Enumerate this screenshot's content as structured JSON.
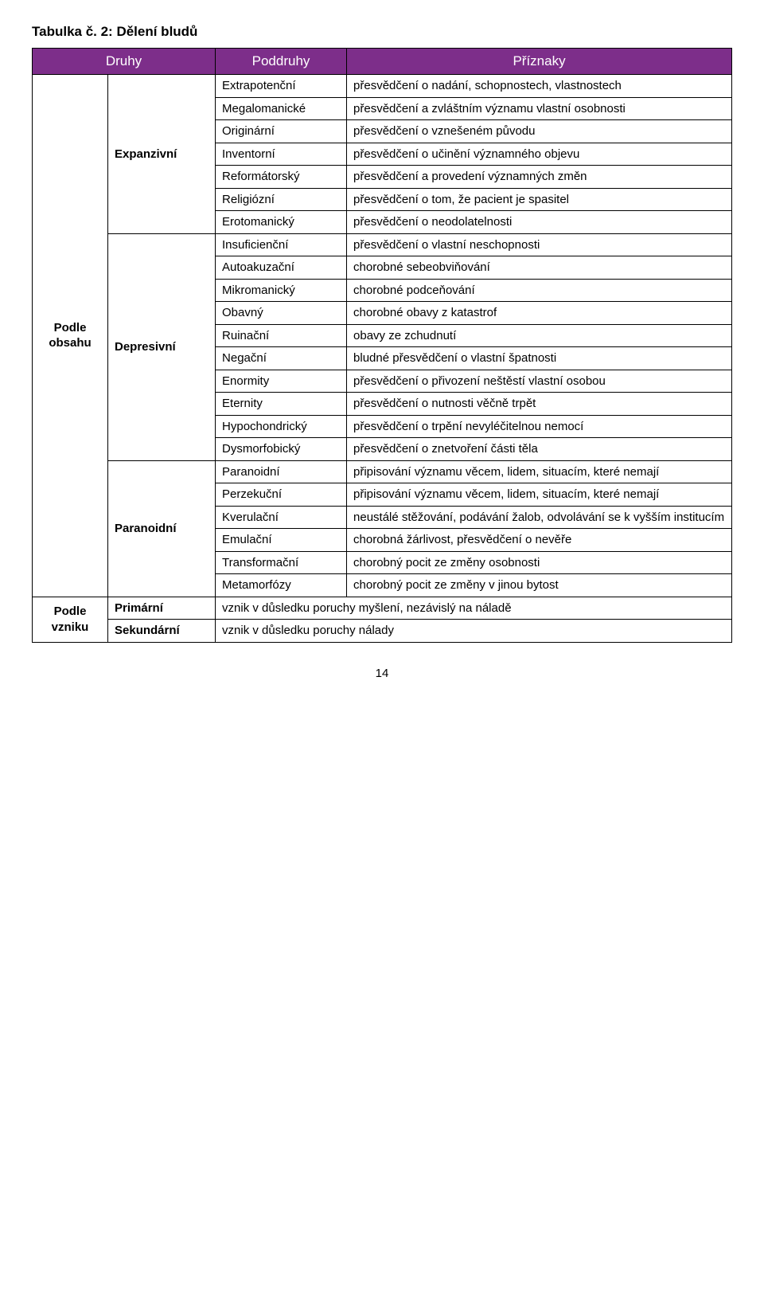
{
  "title": "Tabulka č. 2: Dělení bludů",
  "header_bg": "#7d2e8a",
  "headers": {
    "druhy": "Druhy",
    "poddruhy": "Poddruhy",
    "priznaky": "Příznaky"
  },
  "left_groups": {
    "obsah": "Podle obsahu",
    "vznik": "Podle vzniku"
  },
  "druhy": {
    "expanzivni": "Expanzivní",
    "depresivni": "Depresivní",
    "paranoidni": "Paranoidní",
    "primarni": "Primární",
    "sekundarni": "Sekundární"
  },
  "rows": {
    "extrapotencni": {
      "pod": "Extrapotenční",
      "priz": "přesvědčení o nadání, schopnostech, vlastnostech"
    },
    "megalomanicke": {
      "pod": "Megalomanické",
      "priz": "přesvědčení a zvláštním významu vlastní osobnosti"
    },
    "originarni": {
      "pod": "Originární",
      "priz": "přesvědčení o vznešeném původu"
    },
    "inventorni": {
      "pod": "Inventorní",
      "priz": "přesvědčení o učinění významného objevu"
    },
    "reformatorsky": {
      "pod": "Reformátorský",
      "priz": "přesvědčení a provedení významných změn"
    },
    "religiozni": {
      "pod": "Religiózní",
      "priz": "přesvědčení o tom, že pacient je spasitel"
    },
    "erotomanicky": {
      "pod": "Erotomanický",
      "priz": "přesvědčení o neodolatelnosti"
    },
    "insuficiencni": {
      "pod": "Insuficienční",
      "priz": "přesvědčení o vlastní neschopnosti"
    },
    "autoakuzacni": {
      "pod": "Autoakuzační",
      "priz": "chorobné sebeobviňování"
    },
    "mikromanicky": {
      "pod": "Mikromanický",
      "priz": "chorobné podceňování"
    },
    "obavny": {
      "pod": "Obavný",
      "priz": "chorobné obavy z katastrof"
    },
    "ruinacni": {
      "pod": "Ruinační",
      "priz": "obavy ze zchudnutí"
    },
    "negacni": {
      "pod": "Negační",
      "priz": "bludné přesvědčení o vlastní špatnosti"
    },
    "enormity": {
      "pod": "Enormity",
      "priz": "přesvědčení o přivození neštěstí vlastní osobou"
    },
    "eternity": {
      "pod": "Eternity",
      "priz": "přesvědčení o nutnosti věčně trpět"
    },
    "hypochondricky": {
      "pod": "Hypochondrický",
      "priz": "přesvědčení o trpění nevyléčitelnou nemocí"
    },
    "dysmorfobicky": {
      "pod": "Dysmorfobický",
      "priz": "přesvědčení o znetvoření části těla"
    },
    "paranoidni_r": {
      "pod": "Paranoidní",
      "priz": "připisování významu věcem, lidem, situacím, které nemají"
    },
    "perzekucni": {
      "pod": "Perzekuční",
      "priz": "připisování významu věcem, lidem, situacím, které nemají"
    },
    "kverulacni": {
      "pod": "Kverulační",
      "priz": "neustálé stěžování, podávání žalob, odvolávání se k vyšším institucím"
    },
    "emulacni": {
      "pod": "Emulační",
      "priz": "chorobná žárlivost, přesvědčení o nevěře"
    },
    "transformacni": {
      "pod": "Transformační",
      "priz": "chorobný pocit ze změny osobnosti"
    },
    "metamorfozy": {
      "pod": "Metamorfózy",
      "priz": "chorobný pocit ze změny v jinou bytost"
    }
  },
  "primarni_text": "vznik v důsledku poruchy myšlení, nezávislý na náladě",
  "sekundarni_text": "vznik v důsledku poruchy nálady",
  "page_number": "14"
}
